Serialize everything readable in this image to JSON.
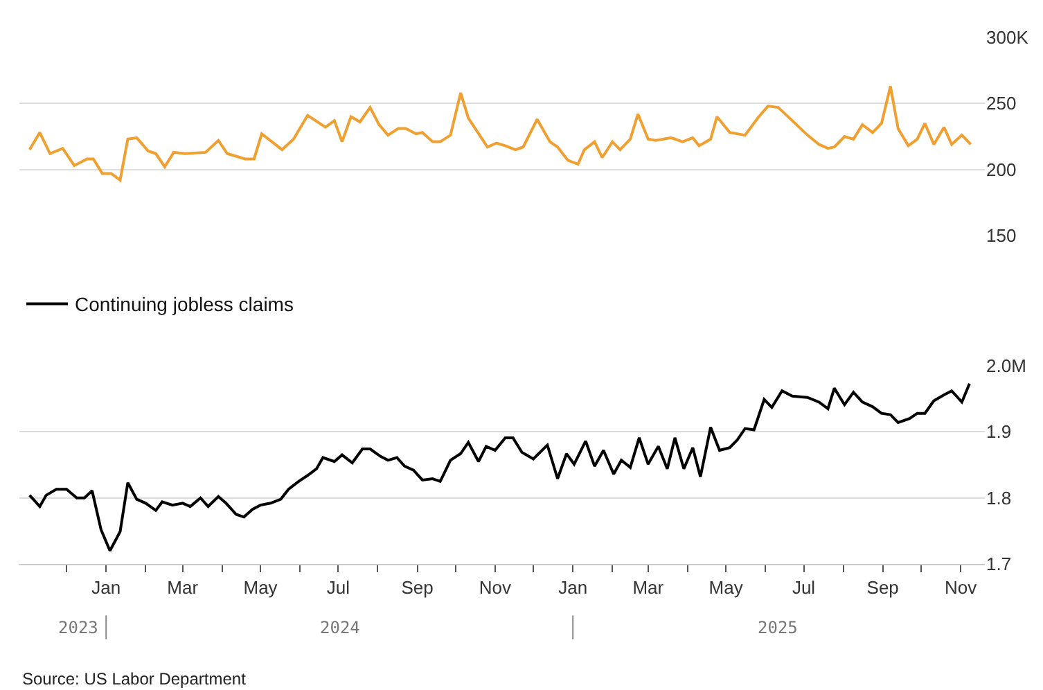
{
  "chart_data": [
    {
      "type": "line",
      "xlim": [
        "2023-10-25",
        "2025-11-20"
      ],
      "ylim": [
        150,
        300
      ],
      "yticks": [
        {
          "value": 300,
          "label": "300K"
        },
        250,
        200,
        150
      ],
      "grid": "y",
      "tick_labels": "y",
      "series": [
        {
          "color": "#f0a030",
          "x": [
            "2023-11-02",
            "2023-11-10",
            "2023-11-18",
            "2023-11-28",
            "2023-12-07",
            "2023-12-17",
            "2023-12-22",
            "2023-12-29",
            "2024-01-05",
            "2024-01-12",
            "2024-01-18",
            "2024-01-25",
            "2024-02-03",
            "2024-02-09",
            "2024-02-16",
            "2024-02-23",
            "2024-03-03",
            "2024-03-19",
            "2024-03-29",
            "2024-04-05",
            "2024-04-19",
            "2024-04-26",
            "2024-05-02",
            "2024-05-18",
            "2024-05-27",
            "2024-06-07",
            "2024-06-21",
            "2024-06-28",
            "2024-07-04",
            "2024-07-11",
            "2024-07-18",
            "2024-07-26",
            "2024-08-02",
            "2024-08-09",
            "2024-08-17",
            "2024-08-23",
            "2024-08-31",
            "2024-09-05",
            "2024-09-13",
            "2024-09-19",
            "2024-09-27",
            "2024-10-05",
            "2024-10-11",
            "2024-10-26",
            "2024-11-02",
            "2024-11-09",
            "2024-11-17",
            "2024-11-23",
            "2024-12-04",
            "2024-12-14",
            "2024-12-20",
            "2024-12-28",
            "2025-01-05",
            "2025-01-10",
            "2025-01-18",
            "2025-01-24",
            "2025-02-01",
            "2025-02-07",
            "2025-02-15",
            "2025-02-21",
            "2025-03-01",
            "2025-03-07",
            "2025-03-19",
            "2025-03-28",
            "2025-04-05",
            "2025-04-10",
            "2025-04-19",
            "2025-04-24",
            "2025-05-04",
            "2025-05-16",
            "2025-05-26",
            "2025-06-03",
            "2025-06-11",
            "2025-06-22",
            "2025-07-04",
            "2025-07-13",
            "2025-07-20",
            "2025-07-25",
            "2025-08-02",
            "2025-08-09",
            "2025-08-16",
            "2025-08-24",
            "2025-08-31",
            "2025-09-07",
            "2025-09-13",
            "2025-09-21",
            "2025-09-28",
            "2025-10-04",
            "2025-10-11",
            "2025-10-19",
            "2025-10-25",
            "2025-11-02",
            "2025-11-09"
          ],
          "values": [
            215,
            228,
            212,
            216,
            203,
            208,
            208,
            197,
            197,
            192,
            223,
            224,
            214,
            212,
            202,
            213,
            212,
            213,
            222,
            212,
            208,
            208,
            227,
            215,
            223,
            241,
            232,
            237,
            221,
            240,
            236,
            247,
            234,
            226,
            231,
            231,
            227,
            228,
            221,
            221,
            226,
            258,
            239,
            217,
            220,
            218,
            215,
            217,
            238,
            221,
            217,
            207,
            204,
            215,
            221,
            209,
            221,
            215,
            223,
            242,
            223,
            222,
            224,
            221,
            224,
            218,
            223,
            240,
            228,
            226,
            239,
            248,
            247,
            237,
            226,
            219,
            216,
            217,
            225,
            223,
            234,
            228,
            235,
            263,
            231,
            218,
            223,
            235,
            219,
            232,
            219,
            226,
            219
          ]
        }
      ]
    },
    {
      "type": "line",
      "xlim": [
        "2023-10-25",
        "2025-11-20"
      ],
      "ylim": [
        1.7,
        2.0
      ],
      "yticks": [
        {
          "value": 2.0,
          "label": "2.0M"
        },
        1.9,
        1.8,
        1.7
      ],
      "xticks": [
        {
          "value": "2023-12-01",
          "label": null
        },
        {
          "value": "2024-01-01",
          "label": "Jan"
        },
        {
          "value": "2024-02-01",
          "label": null
        },
        {
          "value": "2024-03-01",
          "label": "Mar"
        },
        {
          "value": "2024-04-01",
          "label": null
        },
        {
          "value": "2024-05-01",
          "label": "May"
        },
        {
          "value": "2024-06-01",
          "label": null
        },
        {
          "value": "2024-07-01",
          "label": "Jul"
        },
        {
          "value": "2024-08-01",
          "label": null
        },
        {
          "value": "2024-09-01",
          "label": "Sep"
        },
        {
          "value": "2024-10-01",
          "label": null
        },
        {
          "value": "2024-11-01",
          "label": "Nov"
        },
        {
          "value": "2024-12-01",
          "label": null
        },
        {
          "value": "2025-01-01",
          "label": "Jan"
        },
        {
          "value": "2025-02-01",
          "label": null
        },
        {
          "value": "2025-03-01",
          "label": "Mar"
        },
        {
          "value": "2025-04-01",
          "label": null
        },
        {
          "value": "2025-05-01",
          "label": "May"
        },
        {
          "value": "2025-06-01",
          "label": null
        },
        {
          "value": "2025-07-01",
          "label": "Jul"
        },
        {
          "value": "2025-08-01",
          "label": null
        },
        {
          "value": "2025-09-01",
          "label": "Sep"
        },
        {
          "value": "2025-10-01",
          "label": null
        },
        {
          "value": "2025-11-01",
          "label": "Nov"
        }
      ],
      "grid": "y",
      "legend": "top left",
      "annotations": [
        "2023",
        "2024",
        "2025",
        "Source: US Labor Department"
      ],
      "series": [
        {
          "name": "Continuing jobless claims",
          "color": "#000000",
          "x": [
            "2023-11-02",
            "2023-11-10",
            "2023-11-15",
            "2023-11-23",
            "2023-12-01",
            "2023-12-09",
            "2023-12-15",
            "2023-12-21",
            "2023-12-28",
            "2024-01-04",
            "2024-01-12",
            "2024-01-18",
            "2024-01-25",
            "2024-02-01",
            "2024-02-09",
            "2024-02-14",
            "2024-02-22",
            "2024-03-01",
            "2024-03-07",
            "2024-03-15",
            "2024-03-21",
            "2024-03-29",
            "2024-04-04",
            "2024-04-12",
            "2024-04-18",
            "2024-04-25",
            "2024-05-01",
            "2024-05-09",
            "2024-05-17",
            "2024-05-23",
            "2024-05-31",
            "2024-06-07",
            "2024-06-14",
            "2024-06-19",
            "2024-06-28",
            "2024-07-04",
            "2024-07-12",
            "2024-07-20",
            "2024-07-26",
            "2024-08-03",
            "2024-08-09",
            "2024-08-16",
            "2024-08-22",
            "2024-08-29",
            "2024-09-05",
            "2024-09-13",
            "2024-09-19",
            "2024-09-27",
            "2024-10-05",
            "2024-10-11",
            "2024-10-19",
            "2024-10-25",
            "2024-11-01",
            "2024-11-09",
            "2024-11-15",
            "2024-11-22",
            "2024-12-01",
            "2024-12-12",
            "2024-12-20",
            "2024-12-27",
            "2025-01-02",
            "2025-01-11",
            "2025-01-18",
            "2025-01-25",
            "2025-02-02",
            "2025-02-08",
            "2025-02-15",
            "2025-02-22",
            "2025-03-01",
            "2025-03-09",
            "2025-03-16",
            "2025-03-22",
            "2025-03-29",
            "2025-04-05",
            "2025-04-11",
            "2025-04-19",
            "2025-04-26",
            "2025-05-04",
            "2025-05-10",
            "2025-05-16",
            "2025-05-23",
            "2025-05-31",
            "2025-06-06",
            "2025-06-14",
            "2025-06-22",
            "2025-07-04",
            "2025-07-13",
            "2025-07-20",
            "2025-07-25",
            "2025-08-02",
            "2025-08-09",
            "2025-08-16",
            "2025-08-24",
            "2025-08-31",
            "2025-09-07",
            "2025-09-13",
            "2025-09-22",
            "2025-09-28",
            "2025-10-04",
            "2025-10-11",
            "2025-10-19",
            "2025-10-25",
            "2025-11-02",
            "2025-11-08"
          ],
          "values": [
            1.804,
            1.787,
            1.804,
            1.813,
            1.813,
            1.8,
            1.8,
            1.811,
            1.752,
            1.72,
            1.749,
            1.823,
            1.798,
            1.792,
            1.781,
            1.794,
            1.789,
            1.792,
            1.787,
            1.8,
            1.787,
            1.802,
            1.792,
            1.775,
            1.771,
            1.783,
            1.789,
            1.792,
            1.798,
            1.813,
            1.825,
            1.834,
            1.844,
            1.861,
            1.855,
            1.865,
            1.853,
            1.874,
            1.874,
            1.863,
            1.857,
            1.861,
            1.848,
            1.842,
            1.827,
            1.829,
            1.825,
            1.857,
            1.867,
            1.884,
            1.855,
            1.878,
            1.872,
            1.891,
            1.891,
            1.869,
            1.859,
            1.88,
            1.829,
            1.867,
            1.851,
            1.886,
            1.848,
            1.872,
            1.836,
            1.857,
            1.846,
            1.891,
            1.851,
            1.878,
            1.844,
            1.891,
            1.844,
            1.876,
            1.832,
            1.907,
            1.872,
            1.876,
            1.888,
            1.905,
            1.903,
            1.949,
            1.937,
            1.962,
            1.954,
            1.952,
            1.945,
            1.935,
            1.966,
            1.941,
            1.96,
            1.945,
            1.938,
            1.928,
            1.926,
            1.914,
            1.92,
            1.928,
            1.928,
            1.947,
            1.956,
            1.962,
            1.945,
            1.973
          ]
        }
      ]
    }
  ]
}
